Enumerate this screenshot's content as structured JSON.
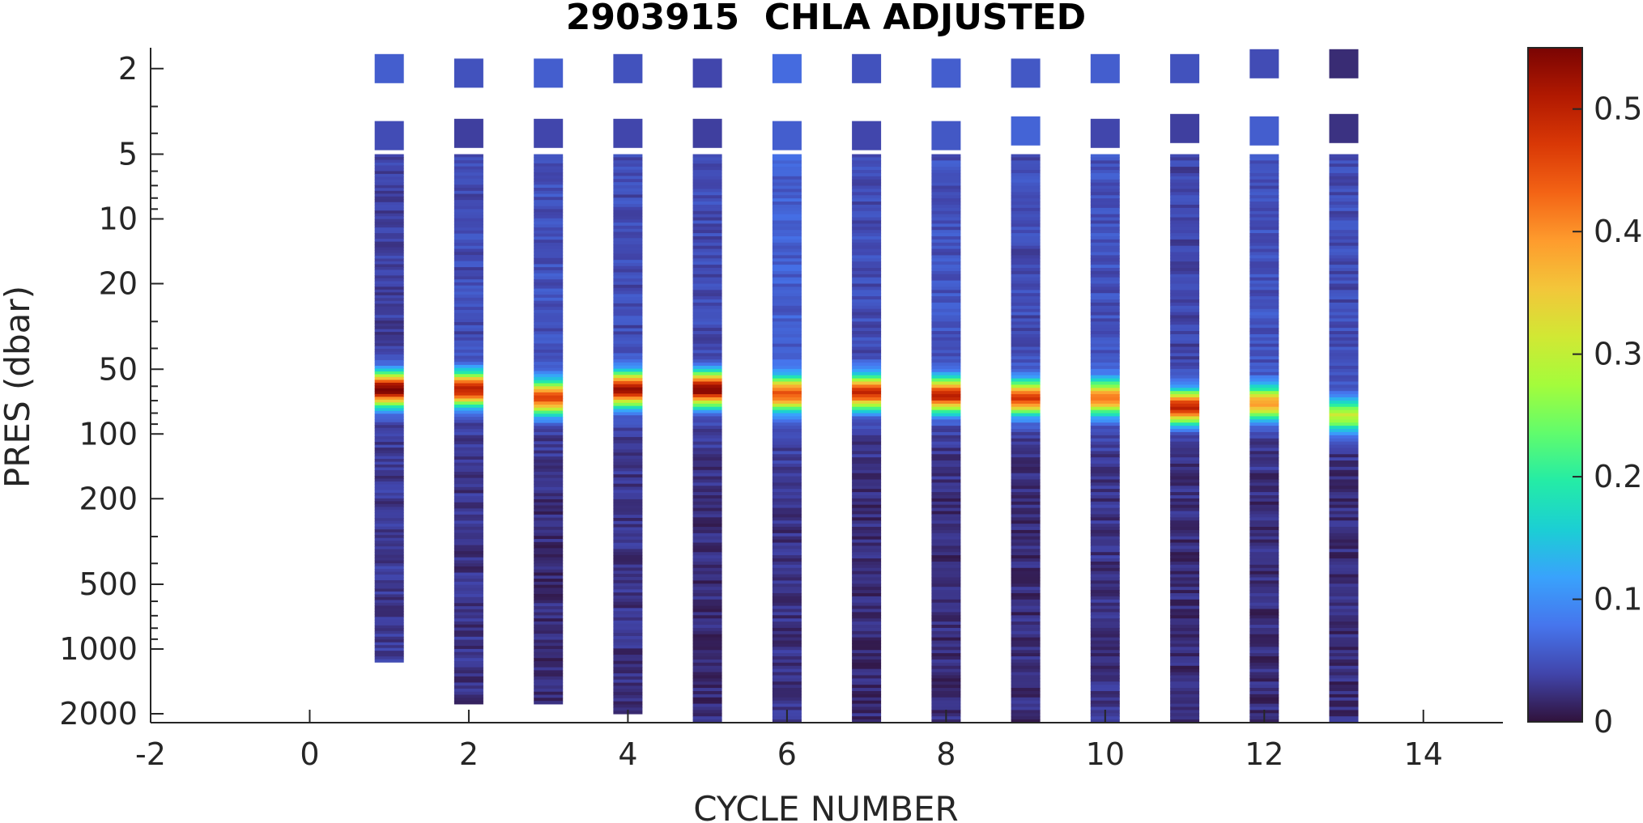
{
  "chart_data": {
    "type": "heatmap",
    "title": "2903915  CHLA ADJUSTED",
    "xlabel": "CYCLE NUMBER",
    "ylabel": "PRES (dbar)",
    "xlim": [
      -2,
      15
    ],
    "x_ticks": [
      -2,
      0,
      2,
      4,
      6,
      8,
      10,
      12,
      14
    ],
    "x_tick_labels": [
      "-2",
      "0",
      "2",
      "4",
      "6",
      "8",
      "10",
      "12",
      "14"
    ],
    "ylim": [
      1.6,
      2200
    ],
    "y_scale": "log",
    "y_reversed": true,
    "y_ticks": [
      2,
      5,
      10,
      20,
      50,
      100,
      200,
      500,
      1000,
      2000
    ],
    "y_tick_labels": [
      "2",
      "5",
      "10",
      "20",
      "50",
      "100",
      "200",
      "500",
      "1000",
      "2000"
    ],
    "colorbar": {
      "colormap": "turbo",
      "range": [
        0,
        0.55
      ],
      "ticks": [
        0,
        0.1,
        0.2,
        0.3,
        0.4,
        0.5
      ],
      "tick_labels": [
        "0",
        "0.1",
        "0.2",
        "0.3",
        "0.4",
        "0.5"
      ],
      "stops": [
        "#30123b",
        "#4145ab",
        "#4675ed",
        "#39a2fc",
        "#1bcfd4",
        "#24eca6",
        "#61fc6c",
        "#a4fc3b",
        "#d1e834",
        "#f3c63a",
        "#fe9b2d",
        "#f36315",
        "#d93806",
        "#b11901",
        "#7a0403"
      ]
    },
    "grid": false,
    "cycles": [
      {
        "cycle": 1,
        "max_pres": 1150,
        "surface_pres": [
          2.0,
          4.1
        ],
        "surface_val": [
          0.06,
          0.045
        ],
        "chl_max_pres": 62,
        "chl_max": 0.55,
        "deep_val": 0.03,
        "near_surface_val": 0.035
      },
      {
        "cycle": 2,
        "max_pres": 1800,
        "surface_pres": [
          2.1,
          4.0
        ],
        "surface_val": [
          0.05,
          0.035
        ],
        "chl_max_pres": 62,
        "chl_max": 0.5,
        "deep_val": 0.025,
        "near_surface_val": 0.045
      },
      {
        "cycle": 3,
        "max_pres": 1800,
        "surface_pres": [
          2.1,
          4.0
        ],
        "surface_val": [
          0.06,
          0.04
        ],
        "chl_max_pres": 68,
        "chl_max": 0.45,
        "deep_val": 0.02,
        "near_surface_val": 0.05
      },
      {
        "cycle": 4,
        "max_pres": 2000,
        "surface_pres": [
          2.0,
          4.0
        ],
        "surface_val": [
          0.05,
          0.04
        ],
        "chl_max_pres": 62,
        "chl_max": 0.52,
        "deep_val": 0.025,
        "near_surface_val": 0.045
      },
      {
        "cycle": 5,
        "max_pres": 2200,
        "surface_pres": [
          2.1,
          4.0
        ],
        "surface_val": [
          0.04,
          0.035
        ],
        "chl_max_pres": 62,
        "chl_max": 0.55,
        "deep_val": 0.02,
        "near_surface_val": 0.045
      },
      {
        "cycle": 6,
        "max_pres": 2200,
        "surface_pres": [
          2.0,
          4.1
        ],
        "surface_val": [
          0.07,
          0.06
        ],
        "chl_max_pres": 65,
        "chl_max": 0.45,
        "deep_val": 0.025,
        "near_surface_val": 0.06
      },
      {
        "cycle": 7,
        "max_pres": 2200,
        "surface_pres": [
          2.0,
          4.1
        ],
        "surface_val": [
          0.05,
          0.04
        ],
        "chl_max_pres": 64,
        "chl_max": 0.49,
        "deep_val": 0.02,
        "near_surface_val": 0.045
      },
      {
        "cycle": 8,
        "max_pres": 2200,
        "surface_pres": [
          2.1,
          4.1
        ],
        "surface_val": [
          0.06,
          0.055
        ],
        "chl_max_pres": 66,
        "chl_max": 0.5,
        "deep_val": 0.02,
        "near_surface_val": 0.05
      },
      {
        "cycle": 9,
        "max_pres": 2200,
        "surface_pres": [
          2.1,
          3.9
        ],
        "surface_val": [
          0.055,
          0.065
        ],
        "chl_max_pres": 68,
        "chl_max": 0.47,
        "deep_val": 0.02,
        "near_surface_val": 0.045
      },
      {
        "cycle": 10,
        "max_pres": 2200,
        "surface_pres": [
          2.0,
          4.0
        ],
        "surface_val": [
          0.06,
          0.04
        ],
        "chl_max_pres": 68,
        "chl_max": 0.42,
        "deep_val": 0.025,
        "near_surface_val": 0.05
      },
      {
        "cycle": 11,
        "max_pres": 2200,
        "surface_pres": [
          2.0,
          3.8
        ],
        "surface_val": [
          0.05,
          0.035
        ],
        "chl_max_pres": 75,
        "chl_max": 0.5,
        "deep_val": 0.02,
        "near_surface_val": 0.04
      },
      {
        "cycle": 12,
        "max_pres": 2200,
        "surface_pres": [
          1.9,
          3.9
        ],
        "surface_val": [
          0.045,
          0.06
        ],
        "chl_max_pres": 72,
        "chl_max": 0.38,
        "deep_val": 0.02,
        "near_surface_val": 0.05
      },
      {
        "cycle": 13,
        "max_pres": 2200,
        "surface_pres": [
          1.9,
          3.8
        ],
        "surface_val": [
          0.02,
          0.025
        ],
        "chl_max_pres": 82,
        "chl_max": 0.3,
        "deep_val": 0.02,
        "near_surface_val": 0.045
      }
    ]
  }
}
